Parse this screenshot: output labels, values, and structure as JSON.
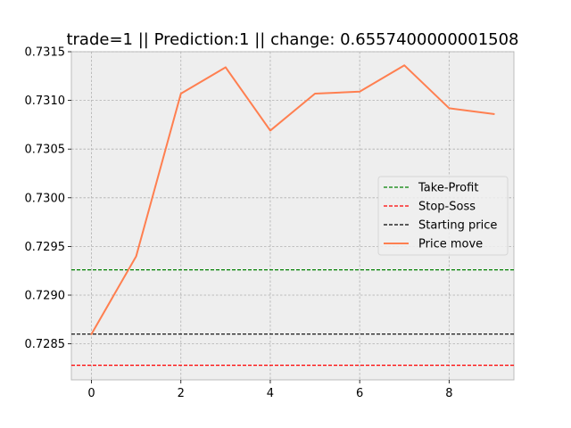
{
  "chart_data": {
    "type": "line",
    "title": "trade=1 || Prediction:1 || change: 0.6557400000001508",
    "xlabel": "",
    "ylabel": "",
    "x": [
      0,
      1,
      2,
      3,
      4,
      5,
      6,
      7,
      8,
      9
    ],
    "xlim": [
      -0.45,
      9.45
    ],
    "ylim": [
      0.72813,
      0.7315
    ],
    "x_ticks": [
      0,
      2,
      4,
      6,
      8
    ],
    "y_ticks": [
      0.7285,
      0.729,
      0.7295,
      0.73,
      0.7305,
      0.731,
      0.7315
    ],
    "y_tick_labels": [
      "0.7285",
      "0.7290",
      "0.7295",
      "0.7300",
      "0.7305",
      "0.7310",
      "0.7315"
    ],
    "grid": true,
    "legend_position": "center-right",
    "series": [
      {
        "name": "Price move",
        "kind": "line",
        "color": "#ff7f50",
        "values": [
          0.7286,
          0.7294,
          0.73107,
          0.73134,
          0.73069,
          0.73107,
          0.73109,
          0.73136,
          0.73092,
          0.73086
        ]
      }
    ],
    "hlines": [
      {
        "name": "Take-Profit",
        "value": 0.72926,
        "color": "#008000",
        "style": "dashed"
      },
      {
        "name": "Stop-Soss",
        "value": 0.72828,
        "color": "#ff0000",
        "style": "dashed"
      },
      {
        "name": "Starting price",
        "value": 0.7286,
        "color": "#000000",
        "style": "dashed"
      }
    ],
    "legend_order": [
      "Take-Profit",
      "Stop-Soss",
      "Starting price",
      "Price move"
    ]
  }
}
